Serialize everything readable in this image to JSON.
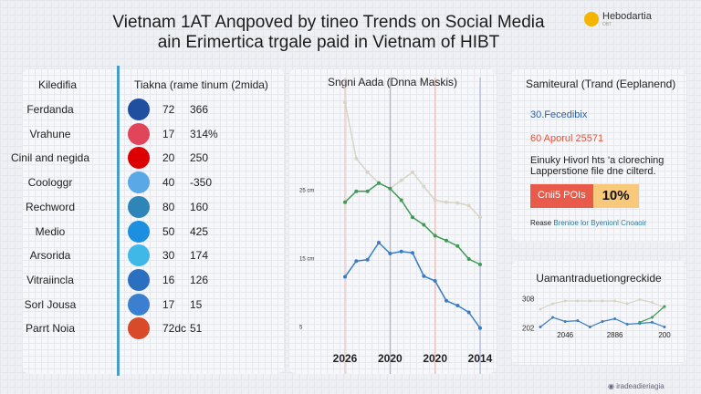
{
  "header": {
    "title_line1": "Vietnam 1AT Anqpoved by tineo Trends on Social Media",
    "title_line2": "ain Erimertica trgale paid in Vietnam of HIBT",
    "logo_name": "Hebodartia",
    "logo_sub": "OBT"
  },
  "table": {
    "col1_header": "Kiledifia",
    "col2_header": "Tiakna (rame tinum (2mida)",
    "rows": [
      {
        "name": "Ferdanda",
        "icon": "blue-circle-logo",
        "color": "#1f4f9e",
        "a": "72",
        "b": "366"
      },
      {
        "name": "Vrahune",
        "icon": "red-p-logo",
        "color": "#e0455a",
        "a": "17",
        "b": "314%"
      },
      {
        "name": "Cinil and negida",
        "icon": "german-flag",
        "color": "#dd0000",
        "a": "20",
        "b": "250"
      },
      {
        "name": "Coologgr",
        "icon": "light-blue-circle-logo",
        "color": "#5aa9e6",
        "a": "40",
        "b": "-350"
      },
      {
        "name": "Rechword",
        "icon": "teal-wave-logo",
        "color": "#2e86b8",
        "a": "80",
        "b": "160"
      },
      {
        "name": "Medio",
        "icon": "twitter-bird-icon",
        "color": "#1d8fe0",
        "a": "50",
        "b": "425"
      },
      {
        "name": "Arsorida",
        "icon": "cyan-circle-logo",
        "color": "#3fb8e8",
        "a": "30",
        "b": "174"
      },
      {
        "name": "Vitraiincla",
        "icon": "bar-chart-icon",
        "color": "#2a6fc0",
        "a": "16",
        "b": "126"
      },
      {
        "name": "Sorl Jousa",
        "icon": "blue-app-icon",
        "color": "#3b7fd0",
        "a": "17",
        "b": "15"
      },
      {
        "name": "Parrt Noia",
        "icon": "multicolor-logo",
        "color": "#d84a2a",
        "a": "72dc",
        "b": "51"
      }
    ]
  },
  "chart_data": [
    {
      "type": "line",
      "title": "Sngni Aada (Dnna Maskis)",
      "ylim": [
        0,
        40
      ],
      "grid": true,
      "y_ticks": [
        {
          "value": 25,
          "label": "25 cm"
        },
        {
          "value": 15,
          "label": "15 cm"
        },
        {
          "value": 5,
          "label": "5"
        }
      ],
      "x_ticks": [
        {
          "index": 0,
          "label": "2026"
        },
        {
          "index": 4,
          "label": "2020"
        },
        {
          "index": 8,
          "label": "2020"
        },
        {
          "index": 12,
          "label": "2014"
        }
      ],
      "series": [
        {
          "color": "#d8d4c6",
          "values": [
            37.7,
            29.5,
            27.5,
            25.9,
            25.1,
            26.3,
            27.5,
            25.4,
            23.4,
            23.1,
            23.0,
            22.6,
            20.9
          ]
        },
        {
          "color": "#3f9a55",
          "values": [
            23.1,
            24.7,
            24.7,
            25.9,
            25.1,
            23.4,
            20.9,
            19.8,
            18.2,
            17.5,
            16.7,
            14.8,
            14.0
          ]
        },
        {
          "color": "#3a7cc4",
          "values": [
            12.2,
            14.5,
            14.7,
            17.2,
            15.6,
            15.9,
            15.7,
            12.3,
            11.6,
            8.7,
            8.0,
            7.0,
            4.7
          ]
        }
      ]
    },
    {
      "type": "line",
      "title": "Uamantraduetiongreckide",
      "ylim": [
        200,
        310
      ],
      "y_ticks": [
        {
          "value": 308,
          "label": "308"
        },
        {
          "value": 202,
          "label": "202"
        }
      ],
      "x_ticks": [
        {
          "index": 2,
          "label": "2046"
        },
        {
          "index": 6,
          "label": "2886"
        },
        {
          "index": 10,
          "label": "200"
        }
      ],
      "series": [
        {
          "color": "#d8d4c6",
          "values": [
            270,
            290,
            300,
            300,
            300,
            300,
            300,
            290,
            305,
            295,
            275
          ]
        },
        {
          "color": "#3a7cc4",
          "values": [
            205,
            240,
            225,
            228,
            205,
            225,
            235,
            215,
            218,
            222,
            205
          ]
        },
        {
          "color": "#3f9a55",
          "values": [
            null,
            null,
            null,
            null,
            null,
            null,
            null,
            null,
            222,
            240,
            280
          ]
        }
      ]
    }
  ],
  "summary": {
    "title": "Samiteural (Trand (Eeplanend)",
    "stat1": "30.Fecedibix",
    "stat1_color": "#2a5fa8",
    "stat2": "60 Aporul 25571",
    "stat2_color": "#e0553f",
    "desc_line1": "Einuky Hivorl hts 'a cloreching",
    "desc_line2": "Lapperstione file dne cilterd.",
    "badge_label": "Cnii5 POIs",
    "badge_value": "10%",
    "note_prefix": "Rease",
    "note_link": "Brenioe lor Byenionl Cnoaoir"
  },
  "footer": {
    "credit": "iradeadieriagia"
  }
}
